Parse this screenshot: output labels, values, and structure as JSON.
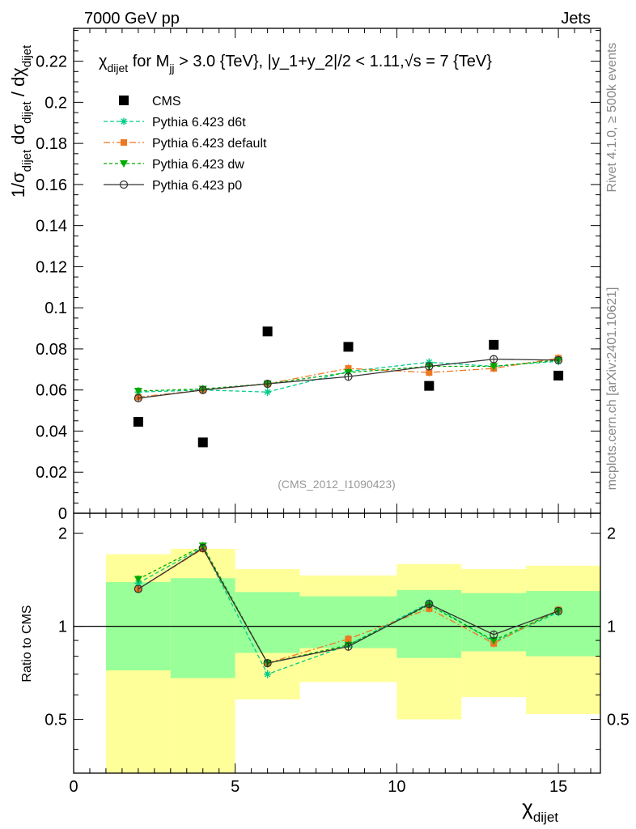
{
  "header": {
    "left": "7000 GeV pp",
    "right": "Jets",
    "side_events": "Rivet 4.1.0, ≥ 500k events",
    "side_source": "mcplots.cern.ch [arXiv:2401.10621]",
    "analysis": "(CMS_2012_I1090423)"
  },
  "chart_data": {
    "type": "scatter",
    "title": "χ_dijet for M_jj > 3.0 {TeV}, |y_1+y_2|/2 < 1.11,√s = 7 {TeV}",
    "title_parts": {
      "chi": "χ",
      "chi_sub": "dijet",
      "for_m": " for M",
      "m_sub": "jj",
      "cut": " > 3.0 {TeV}, |y_1+y_2|/2 < 1.11,",
      "sqrt": "√",
      "s_eq": "s = 7 {TeV}"
    },
    "ylabel": "1/σ_dijet dσ_dijet / dχ_dijet",
    "ylabel_parts": {
      "a": "1/σ",
      "a_sub": "dijet",
      "b": " dσ",
      "b_sub": "dijet",
      "c": " / dχ",
      "c_sub": "dijet"
    },
    "xlabel": "χ_dijet",
    "xlabel_parts": {
      "main": "χ",
      "sub": "dijet"
    },
    "ratio_ylabel": "Ratio to CMS",
    "xlim": [
      0,
      16.3
    ],
    "ylim": [
      0,
      0.236
    ],
    "ratio_ylim": [
      0.335,
      2.32
    ],
    "x_ticks": [
      0,
      5,
      10,
      15
    ],
    "y_ticks": [
      0,
      0.02,
      0.04,
      0.06,
      0.08,
      0.1,
      0.12,
      0.14,
      0.16,
      0.18,
      0.2,
      0.22
    ],
    "y_tick_labels": [
      "0",
      "0.02",
      "0.04",
      "0.06",
      "0.08",
      "0.1",
      "0.12",
      "0.14",
      "0.16",
      "0.18",
      "0.2",
      "0.22"
    ],
    "ratio_ticks": [
      0.5,
      1,
      2
    ],
    "ratio_tick_labels": [
      "0.5",
      "1",
      "2"
    ],
    "legend_position": "top-left",
    "data": {
      "name": "CMS",
      "color": "#000000",
      "x": [
        2,
        4,
        6,
        8.5,
        11,
        13,
        15
      ],
      "y": [
        0.0445,
        0.0345,
        0.0885,
        0.081,
        0.062,
        0.082,
        0.067
      ]
    },
    "bands": [
      {
        "xlo": 1,
        "xhi": 3,
        "yellow": [
          0.33,
          1.71
        ],
        "green": [
          0.72,
          1.39
        ]
      },
      {
        "xlo": 3,
        "xhi": 5,
        "yellow": [
          0.33,
          1.78
        ],
        "green": [
          0.68,
          1.43
        ]
      },
      {
        "xlo": 5,
        "xhi": 7,
        "yellow": [
          0.58,
          1.53
        ],
        "green": [
          0.82,
          1.29
        ]
      },
      {
        "xlo": 7,
        "xhi": 10,
        "yellow": [
          0.66,
          1.46
        ],
        "green": [
          0.85,
          1.25
        ]
      },
      {
        "xlo": 10,
        "xhi": 12,
        "yellow": [
          0.5,
          1.59
        ],
        "green": [
          0.79,
          1.31
        ]
      },
      {
        "xlo": 12,
        "xhi": 14,
        "yellow": [
          0.59,
          1.53
        ],
        "green": [
          0.83,
          1.28
        ]
      },
      {
        "xlo": 14,
        "xhi": 16.3,
        "yellow": [
          0.52,
          1.57
        ],
        "green": [
          0.8,
          1.3
        ]
      }
    ],
    "series": [
      {
        "name": "Pythia 6.423 d6t",
        "color": "#00cc88",
        "dash": "5,3",
        "marker": "star",
        "x": [
          2,
          4,
          6,
          8.5,
          11,
          13,
          15
        ],
        "y": [
          0.059,
          0.06,
          0.059,
          0.069,
          0.0735,
          0.0715,
          0.074
        ],
        "ratio": [
          1.38,
          1.8,
          0.7,
          0.87,
          1.19,
          0.89,
          1.11
        ]
      },
      {
        "name": "Pythia 6.423 default",
        "color": "#ee7722",
        "dash": "8,3,2,3",
        "marker": "square",
        "x": [
          2,
          4,
          6,
          8.5,
          11,
          13,
          15
        ],
        "y": [
          0.0565,
          0.06,
          0.063,
          0.0705,
          0.0685,
          0.0705,
          0.0755
        ],
        "ratio": [
          1.32,
          1.78,
          0.76,
          0.91,
          1.14,
          0.88,
          1.13
        ]
      },
      {
        "name": "Pythia 6.423 dw",
        "color": "#00aa00",
        "dash": "4,3",
        "marker": "triangle-down",
        "x": [
          2,
          4,
          6,
          8.5,
          11,
          13,
          15
        ],
        "y": [
          0.0595,
          0.0605,
          0.063,
          0.0685,
          0.0715,
          0.0715,
          0.0745
        ],
        "ratio": [
          1.42,
          1.82,
          0.76,
          0.87,
          1.17,
          0.9,
          1.12
        ]
      },
      {
        "name": "Pythia 6.423 p0",
        "color": "#333333",
        "dash": "",
        "marker": "circle-open",
        "x": [
          2,
          4,
          6,
          8.5,
          11,
          13,
          15
        ],
        "y": [
          0.056,
          0.06,
          0.063,
          0.0665,
          0.0715,
          0.075,
          0.0745
        ],
        "ratio": [
          1.32,
          1.79,
          0.76,
          0.86,
          1.18,
          0.94,
          1.12
        ]
      }
    ]
  }
}
